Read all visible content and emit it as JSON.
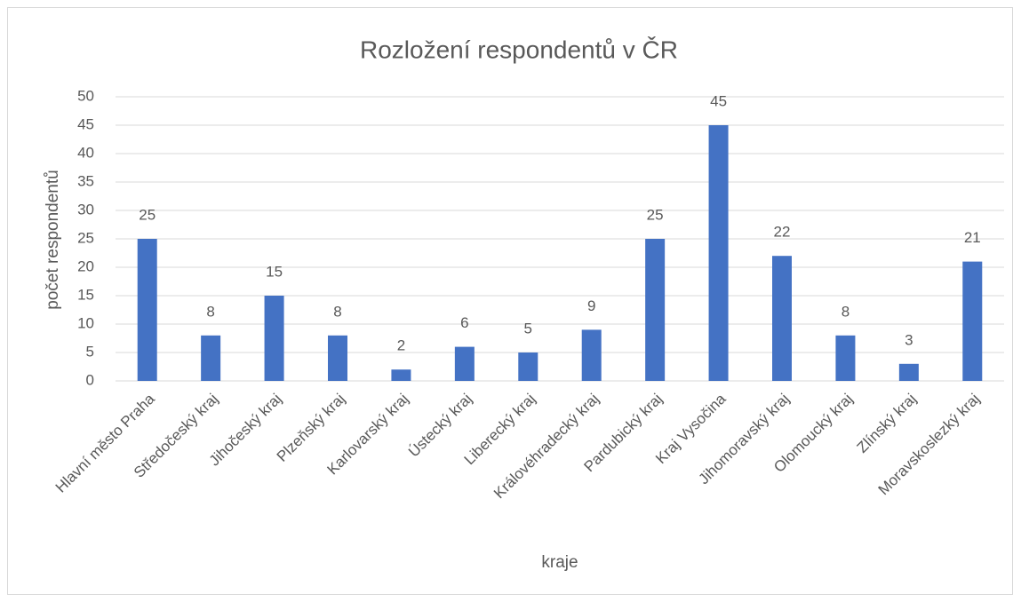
{
  "chart_data": {
    "type": "bar",
    "title": "Rozložení respondentů v ČR",
    "x_label": "kraje",
    "y_label": "počet respondentů",
    "categories": [
      "Hlavní město Praha",
      "Středočeský kraj",
      "Jihočeský kraj",
      "Plzeňský kraj",
      "Karlovarský kraj",
      "Ústecký kraj",
      "Liberecký kraj",
      "Královéhradecký kraj",
      "Pardubický kraj",
      "Kraj Vysočina",
      "Jihomoravský kraj",
      "Olomoucký kraj",
      "Zlínský kraj",
      "Moravskoslezký kraj"
    ],
    "values": [
      25,
      8,
      15,
      8,
      2,
      6,
      5,
      9,
      25,
      45,
      22,
      8,
      3,
      21
    ],
    "color": "#4472c4",
    "ylim": [
      0,
      50
    ],
    "yticks": [
      0,
      5,
      10,
      15,
      20,
      25,
      30,
      35,
      40,
      45,
      50
    ],
    "grid": true
  }
}
